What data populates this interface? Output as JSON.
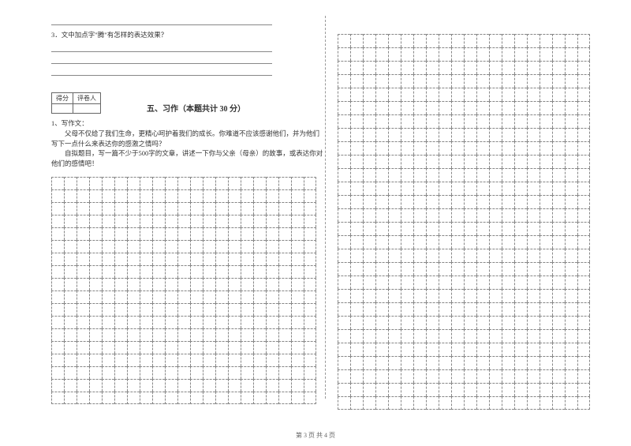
{
  "q3_label": "3．文中加点字\"腾\"有怎样的表达效果？",
  "score_table": {
    "left": "得分",
    "right": "评卷人"
  },
  "section": "五、习作（本题共计 30 分）",
  "essay": {
    "num": "1、写作文：",
    "line1": "父母不仅给了我们生命，更精心呵护着我们的成长。你难道不应该感谢他们，并为他们写下一点什么来表达你的感激之情吗？",
    "line2": "自拟题目，写一篇不少于500字的文章，讲述一下你与父亲（母亲）的故事，或表达你对他们的感情吧！"
  },
  "page_num": "第 3 页 共 4 页",
  "grid_left": {
    "cols": 21,
    "rows": 18
  },
  "grid_right": {
    "cols": 20,
    "rows": 28
  }
}
